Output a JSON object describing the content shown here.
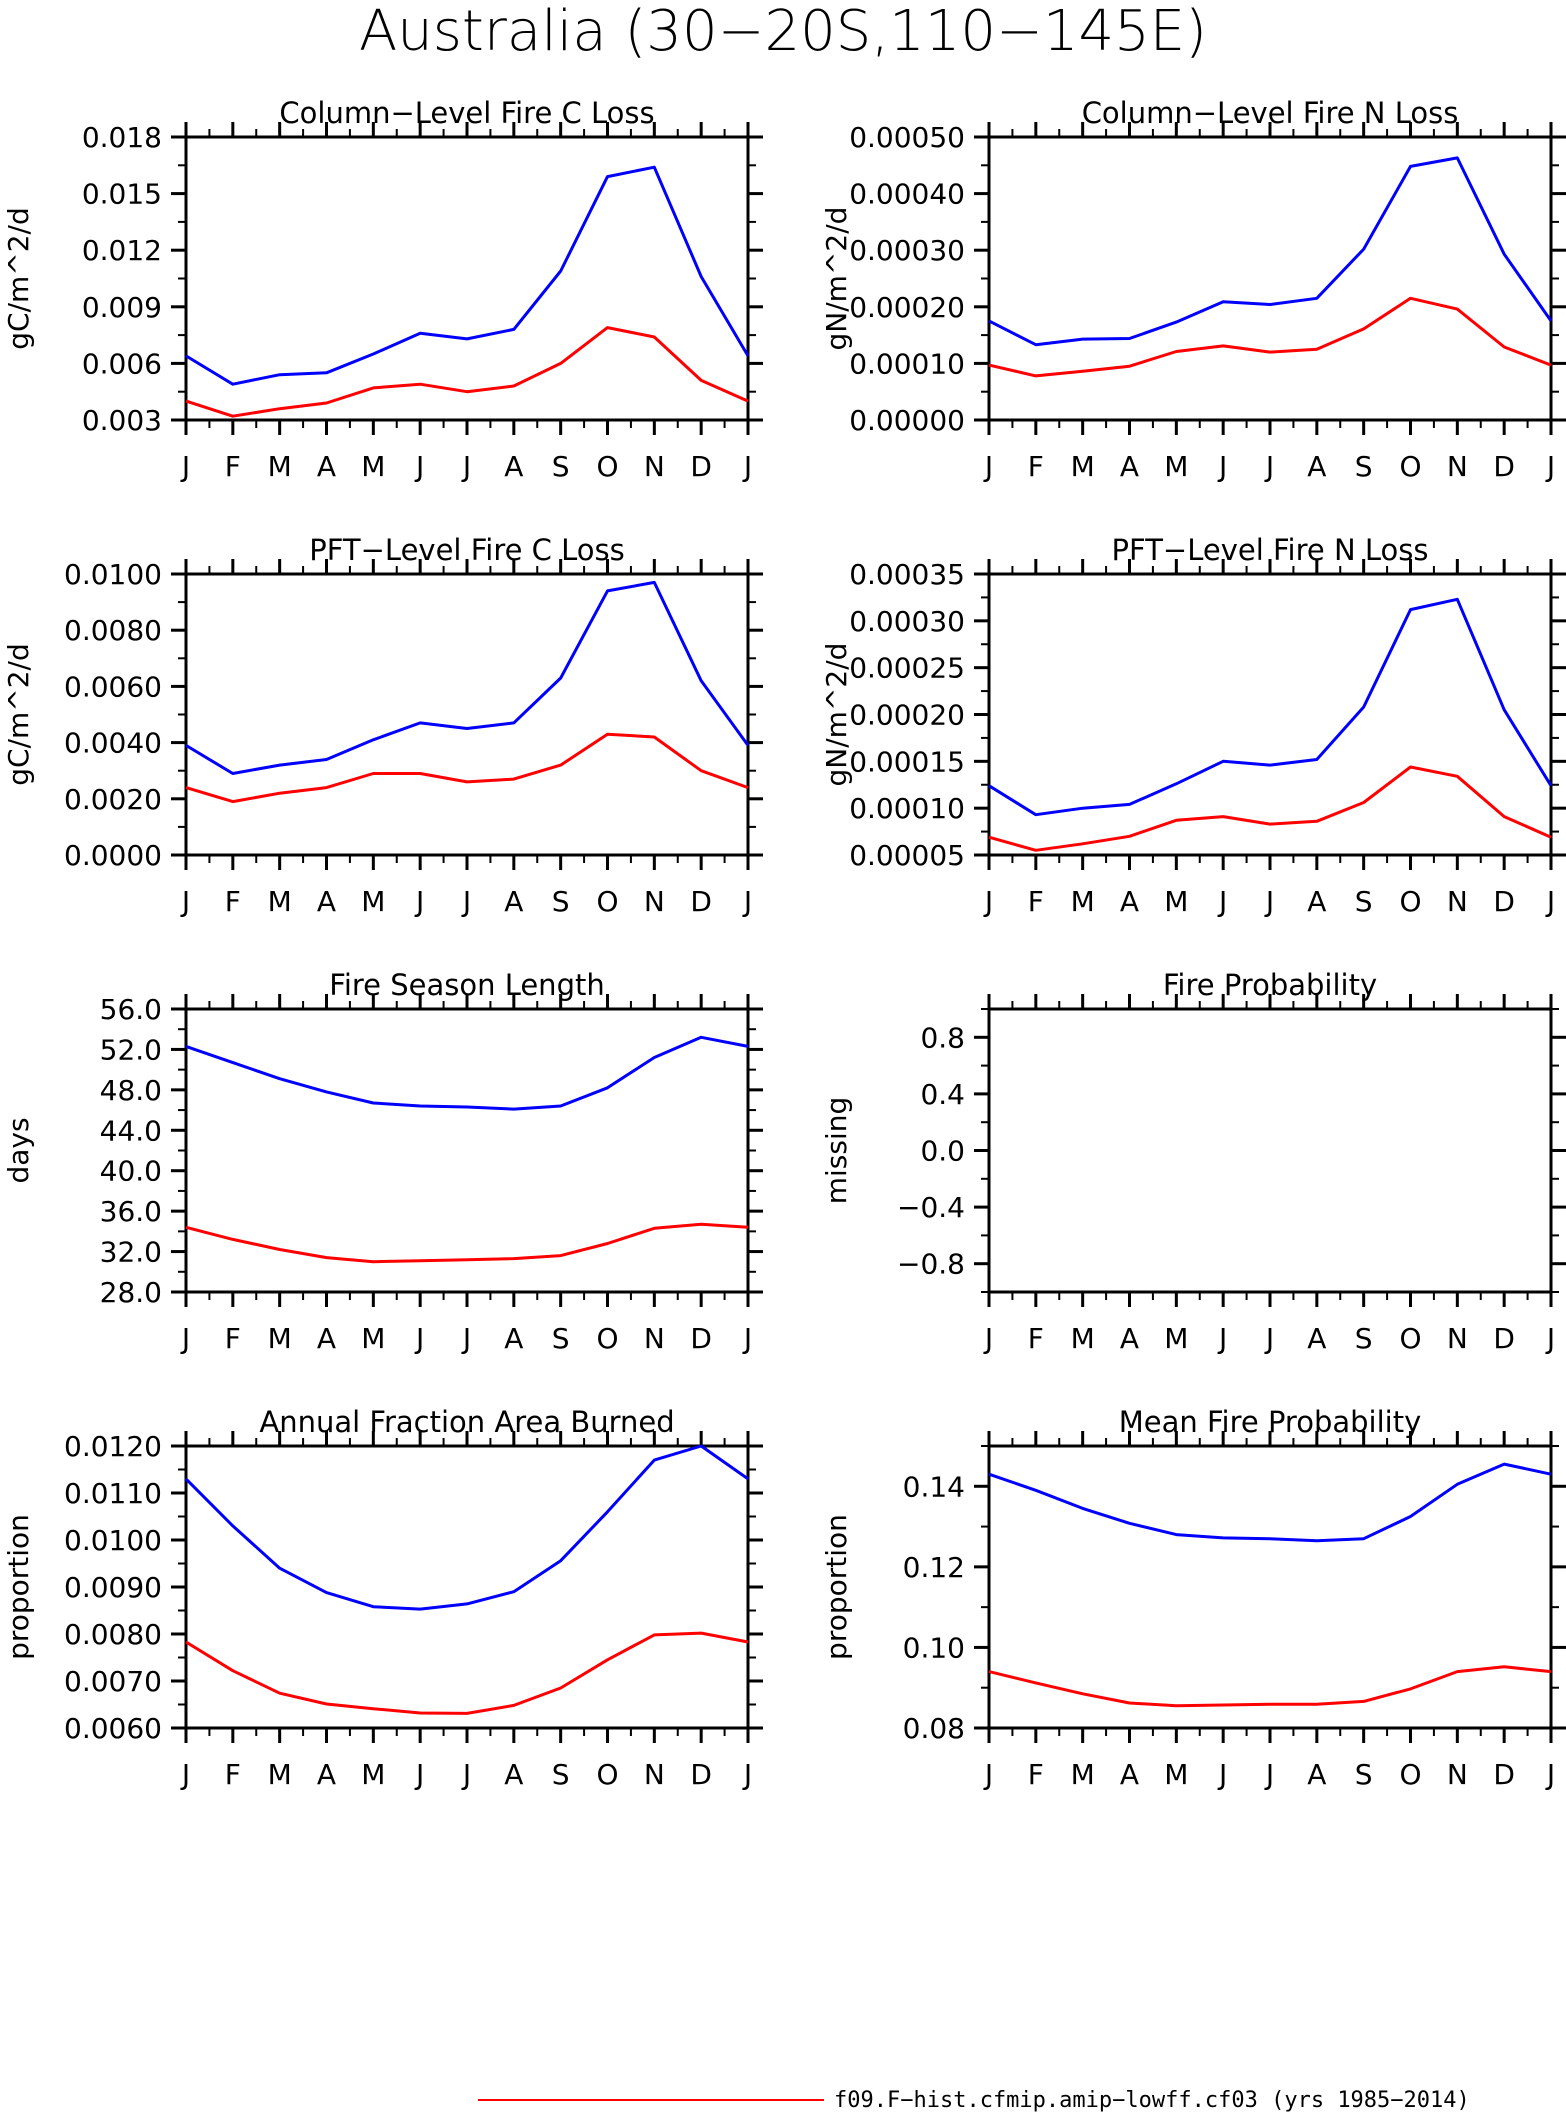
{
  "figure_title": "Australia (30−20S,110−145E)",
  "months": [
    "J",
    "F",
    "M",
    "A",
    "M",
    "J",
    "J",
    "A",
    "S",
    "O",
    "N",
    "D",
    "J"
  ],
  "colors": {
    "series_1": "#0000ff",
    "series_2": "#ff0000"
  },
  "legend": [
    {
      "color": "#ff0000",
      "label": "f09.F−hist.cfmip.amip−lowff.cf03 (yrs 1985−2014)"
    }
  ],
  "chart_data": [
    {
      "type": "line",
      "title": "Column−Level Fire C Loss",
      "ylabel": "gC/m^2/d",
      "ylim": [
        0.003,
        0.018
      ],
      "yticks": [
        0.003,
        0.006,
        0.009,
        0.012,
        0.015,
        0.018
      ],
      "ytick_labels": [
        "0.003",
        "0.006",
        "0.009",
        "0.012",
        "0.015",
        "0.018"
      ],
      "series": [
        {
          "color": "#0000ff",
          "values": [
            0.0064,
            0.0049,
            0.0054,
            0.0055,
            0.0065,
            0.0076,
            0.0073,
            0.0078,
            0.0109,
            0.0159,
            0.0164,
            0.0106,
            0.0064
          ]
        },
        {
          "color": "#ff0000",
          "values": [
            0.004,
            0.0032,
            0.0036,
            0.0039,
            0.0047,
            0.0049,
            0.0045,
            0.0048,
            0.006,
            0.0079,
            0.0074,
            0.0051,
            0.004
          ]
        }
      ]
    },
    {
      "type": "line",
      "title": "Column−Level Fire N Loss",
      "ylabel": "gN/m^2/d",
      "ylim": [
        0,
        0.0005
      ],
      "yticks": [
        0,
        0.0001,
        0.0002,
        0.0003,
        0.0004,
        0.0005
      ],
      "ytick_labels": [
        "0.00000",
        "0.00010",
        "0.00020",
        "0.00030",
        "0.00040",
        "0.00050"
      ],
      "series": [
        {
          "color": "#0000ff",
          "values": [
            0.000175,
            0.000133,
            0.000143,
            0.000144,
            0.000173,
            0.000209,
            0.000204,
            0.000215,
            0.000302,
            0.000448,
            0.000463,
            0.000293,
            0.000175
          ]
        },
        {
          "color": "#ff0000",
          "values": [
            9.7e-05,
            7.8e-05,
            8.6e-05,
            9.5e-05,
            0.000121,
            0.000131,
            0.00012,
            0.000125,
            0.000161,
            0.000215,
            0.000196,
            0.000129,
            9.7e-05
          ]
        }
      ]
    },
    {
      "type": "line",
      "title": "PFT−Level Fire C Loss",
      "ylabel": "gC/m^2/d",
      "ylim": [
        0,
        0.01
      ],
      "yticks": [
        0,
        0.002,
        0.004,
        0.006,
        0.008,
        0.01
      ],
      "ytick_labels": [
        "0.0000",
        "0.0020",
        "0.0040",
        "0.0060",
        "0.0080",
        "0.0100"
      ],
      "series": [
        {
          "color": "#0000ff",
          "values": [
            0.0039,
            0.0029,
            0.0032,
            0.0034,
            0.0041,
            0.0047,
            0.0045,
            0.0047,
            0.0063,
            0.0094,
            0.0097,
            0.0062,
            0.0039
          ]
        },
        {
          "color": "#ff0000",
          "values": [
            0.0024,
            0.0019,
            0.0022,
            0.0024,
            0.0029,
            0.0029,
            0.0026,
            0.0027,
            0.0032,
            0.0043,
            0.0042,
            0.003,
            0.0024
          ]
        }
      ]
    },
    {
      "type": "line",
      "title": "PFT−Level Fire N Loss",
      "ylabel": "gN/m^2/d",
      "ylim": [
        5e-05,
        0.00035
      ],
      "yticks": [
        5e-05,
        0.0001,
        0.00015,
        0.0002,
        0.00025,
        0.0003,
        0.00035
      ],
      "ytick_labels": [
        "0.00005",
        "0.00010",
        "0.00015",
        "0.00020",
        "0.00025",
        "0.00030",
        "0.00035"
      ],
      "series": [
        {
          "color": "#0000ff",
          "values": [
            0.000124,
            9.3e-05,
            0.0001,
            0.000104,
            0.000126,
            0.00015,
            0.000146,
            0.000152,
            0.000208,
            0.000312,
            0.000323,
            0.000205,
            0.000124
          ]
        },
        {
          "color": "#ff0000",
          "values": [
            6.9e-05,
            5.5e-05,
            6.2e-05,
            7e-05,
            8.7e-05,
            9.1e-05,
            8.3e-05,
            8.6e-05,
            0.000106,
            0.000144,
            0.000134,
            9.1e-05,
            6.9e-05
          ]
        }
      ]
    },
    {
      "type": "line",
      "title": "Fire Season Length",
      "ylabel": "days",
      "ylim": [
        28,
        56
      ],
      "yticks": [
        28,
        32,
        36,
        40,
        44,
        48,
        52,
        56
      ],
      "ytick_labels": [
        "28.0",
        "32.0",
        "36.0",
        "40.0",
        "44.0",
        "48.0",
        "52.0",
        "56.0"
      ],
      "series": [
        {
          "color": "#0000ff",
          "values": [
            52.3,
            50.7,
            49.1,
            47.8,
            46.7,
            46.4,
            46.3,
            46.1,
            46.4,
            48.2,
            51.2,
            53.2,
            52.3
          ]
        },
        {
          "color": "#ff0000",
          "values": [
            34.4,
            33.2,
            32.2,
            31.4,
            31.0,
            31.1,
            31.2,
            31.3,
            31.6,
            32.8,
            34.3,
            34.7,
            34.4
          ]
        }
      ]
    },
    {
      "type": "line",
      "title": "Fire Probability",
      "ylabel": "missing",
      "ylim": [
        -1,
        1
      ],
      "yticks": [
        -0.8,
        -0.4,
        0,
        0.4,
        0.8
      ],
      "ytick_labels": [
        "−0.8",
        "−0.4",
        "0.0",
        "0.4",
        "0.8"
      ],
      "series": []
    },
    {
      "type": "line",
      "title": "Annual Fraction Area Burned",
      "ylabel": "proportion",
      "ylim": [
        0.006,
        0.012
      ],
      "yticks": [
        0.006,
        0.007,
        0.008,
        0.009,
        0.01,
        0.011,
        0.012
      ],
      "ytick_labels": [
        "0.0060",
        "0.0070",
        "0.0080",
        "0.0090",
        "0.0100",
        "0.0110",
        "0.0120"
      ],
      "series": [
        {
          "color": "#0000ff",
          "values": [
            0.0113,
            0.0103,
            0.0094,
            0.00888,
            0.00858,
            0.00853,
            0.00864,
            0.0089,
            0.00956,
            0.0106,
            0.0117,
            0.012,
            0.0113
          ]
        },
        {
          "color": "#ff0000",
          "values": [
            0.00783,
            0.00722,
            0.00674,
            0.00651,
            0.00641,
            0.00632,
            0.00631,
            0.00648,
            0.00685,
            0.00745,
            0.00798,
            0.00802,
            0.00783
          ]
        }
      ]
    },
    {
      "type": "line",
      "title": "Mean Fire Probability",
      "ylabel": "proportion",
      "ylim": [
        0.08,
        0.15
      ],
      "yticks": [
        0.08,
        0.1,
        0.12,
        0.14
      ],
      "ytick_labels": [
        "0.08",
        "0.10",
        "0.12",
        "0.14"
      ],
      "series": [
        {
          "color": "#0000ff",
          "values": [
            0.143,
            0.139,
            0.1345,
            0.1308,
            0.128,
            0.1272,
            0.127,
            0.1265,
            0.127,
            0.1325,
            0.1405,
            0.1455,
            0.143
          ]
        },
        {
          "color": "#ff0000",
          "values": [
            0.094,
            0.0912,
            0.0885,
            0.0862,
            0.0855,
            0.0857,
            0.0859,
            0.0859,
            0.0866,
            0.0897,
            0.094,
            0.0952,
            0.094
          ]
        }
      ]
    }
  ]
}
